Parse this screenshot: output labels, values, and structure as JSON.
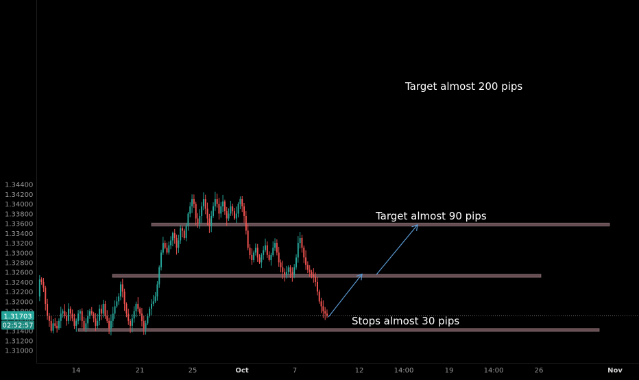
{
  "chart_data": {
    "type": "candlestick",
    "instrument_price_scale": {
      "y_ticks": [
        1.31,
        1.312,
        1.314,
        1.316,
        1.318,
        1.32,
        1.322,
        1.324,
        1.326,
        1.328,
        1.33,
        1.332,
        1.334,
        1.336,
        1.338,
        1.34,
        1.342,
        1.344
      ],
      "y_tick_labels": [
        "1.31000",
        "1.31200",
        "1.31400",
        "1.31600",
        "1.31800",
        "1.32000",
        "1.32200",
        "1.32400",
        "1.32600",
        "1.32800",
        "1.33000",
        "1.33200",
        "1.33400",
        "1.33600",
        "1.33800",
        "1.34000",
        "1.34200",
        "1.34400"
      ],
      "ylim": [
        1.3092,
        1.3453
      ]
    },
    "time_axis": {
      "tick_labels": [
        "14",
        "21",
        "25",
        "Oct",
        "7",
        "12",
        "14:00",
        "19",
        "14:00",
        "26",
        "Nov"
      ],
      "tick_bold": [
        false,
        false,
        false,
        true,
        false,
        false,
        false,
        false,
        false,
        false,
        true
      ]
    },
    "current_price": {
      "value": 1.31703,
      "label": "1.31703",
      "countdown": "02:52:57"
    },
    "zones": [
      {
        "name": "upper-zone",
        "low": 1.33545,
        "high": 1.33605
      },
      {
        "name": "middle-zone",
        "low": 1.32495,
        "high": 1.32555
      },
      {
        "name": "lower-zone",
        "low": 1.31385,
        "high": 1.31445
      }
    ],
    "annotations": [
      {
        "name": "target-200",
        "text": "Target almost 200 pips"
      },
      {
        "name": "target-90",
        "text": "Target almost 90 pips"
      },
      {
        "name": "stops-30",
        "text": "Stops almost 30 pips"
      }
    ],
    "arrow_points": [
      [
        1.3168,
        "leg-start"
      ],
      [
        1.3256,
        "mid"
      ],
      [
        1.3255,
        "mid2"
      ],
      [
        1.3357,
        "end"
      ]
    ],
    "candle_path": [
      1.321,
      1.3245,
      1.324,
      1.3228,
      1.3195,
      1.317,
      1.316,
      1.314,
      1.3155,
      1.315,
      1.3145,
      1.316,
      1.3175,
      1.318,
      1.317,
      1.316,
      1.3185,
      1.3175,
      1.3165,
      1.315,
      1.316,
      1.3175,
      1.318,
      1.316,
      1.3145,
      1.3155,
      1.317,
      1.318,
      1.3175,
      1.3165,
      1.315,
      1.316,
      1.3185,
      1.3175,
      1.3195,
      1.317,
      1.316,
      1.3145,
      1.316,
      1.3175,
      1.319,
      1.32,
      1.321,
      1.3235,
      1.322,
      1.3195,
      1.3175,
      1.316,
      1.315,
      1.3165,
      1.318,
      1.3195,
      1.3185,
      1.3175,
      1.316,
      1.3145,
      1.3155,
      1.317,
      1.3185,
      1.3195,
      1.32,
      1.321,
      1.3235,
      1.327,
      1.33,
      1.332,
      1.331,
      1.33,
      1.3315,
      1.3325,
      1.334,
      1.333,
      1.331,
      1.3325,
      1.335,
      1.3345,
      1.333,
      1.3355,
      1.338,
      1.3395,
      1.341,
      1.34,
      1.337,
      1.336,
      1.3375,
      1.3395,
      1.341,
      1.339,
      1.337,
      1.3355,
      1.3375,
      1.3395,
      1.341,
      1.34,
      1.338,
      1.3395,
      1.3405,
      1.3385,
      1.337,
      1.338,
      1.3395,
      1.3385,
      1.337,
      1.338,
      1.34,
      1.341,
      1.3395,
      1.3375,
      1.3345,
      1.331,
      1.3295,
      1.3285,
      1.33,
      1.331,
      1.329,
      1.328,
      1.3295,
      1.3305,
      1.3315,
      1.3295,
      1.3285,
      1.3295,
      1.331,
      1.332,
      1.33,
      1.328,
      1.327,
      1.326,
      1.3255,
      1.326,
      1.327,
      1.326,
      1.3255,
      1.327,
      1.329,
      1.332,
      1.333,
      1.331,
      1.329,
      1.3275,
      1.3265,
      1.326,
      1.3255,
      1.325,
      1.324,
      1.322,
      1.32,
      1.319,
      1.318,
      1.3175,
      1.317
    ]
  }
}
